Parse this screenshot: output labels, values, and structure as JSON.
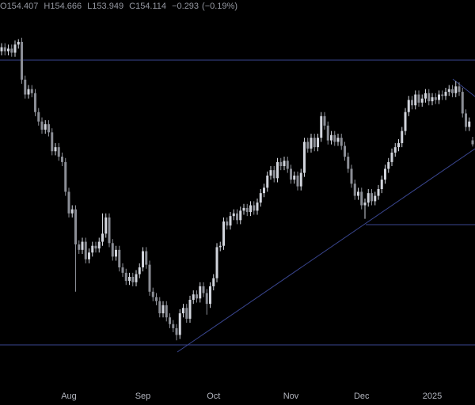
{
  "chart_data": {
    "type": "candlestick",
    "header": {
      "ohlc_prefixes": [
        "O",
        "H",
        "L",
        "C"
      ],
      "change": {
        "value": -0.293,
        "label": "−0.293"
      },
      "change_pct": {
        "value": -0.19,
        "label": "(−0.19%)"
      }
    },
    "categories": [
      null,
      null,
      null,
      null,
      null,
      null,
      null,
      null,
      null,
      null,
      null,
      null,
      null,
      null,
      null,
      null,
      null,
      null,
      null,
      null,
      "Aug",
      null,
      null,
      null,
      null,
      null,
      null,
      null,
      null,
      null,
      null,
      null,
      null,
      null,
      null,
      null,
      null,
      null,
      null,
      null,
      null,
      null,
      "Sep",
      null,
      null,
      null,
      null,
      null,
      null,
      null,
      null,
      null,
      null,
      null,
      null,
      null,
      null,
      null,
      null,
      null,
      null,
      null,
      null,
      "Oct",
      null,
      null,
      null,
      null,
      null,
      null,
      null,
      null,
      null,
      null,
      null,
      null,
      null,
      null,
      null,
      null,
      null,
      null,
      null,
      null,
      null,
      null,
      "Nov",
      null,
      null,
      null,
      null,
      null,
      null,
      null,
      null,
      null,
      null,
      null,
      null,
      null,
      null,
      null,
      null,
      null,
      null,
      null,
      null,
      "Dec",
      null,
      null,
      null,
      null,
      null,
      null,
      null,
      null,
      null,
      null,
      null,
      null,
      null,
      null,
      null,
      null,
      null,
      null,
      null,
      null,
      "2025",
      null,
      null,
      null,
      null,
      null,
      null,
      null,
      null,
      null,
      null,
      null,
      null
    ],
    "open": [
      161.0,
      161.3,
      161.0,
      161.2,
      160.9,
      161.5,
      161.7,
      158.9,
      157.8,
      158.2,
      157.9,
      156.5,
      155.8,
      155.2,
      155.6,
      155.0,
      153.6,
      153.9,
      153.2,
      152.8,
      150.6,
      149.0,
      149.3,
      146.7,
      146.3,
      146.9,
      145.6,
      146.1,
      146.6,
      146.4,
      146.9,
      147.5,
      148.7,
      146.8,
      145.8,
      146.3,
      145.0,
      144.6,
      144.0,
      144.3,
      143.9,
      144.5,
      145.0,
      146.2,
      145.2,
      143.2,
      142.8,
      142.5,
      141.6,
      142.2,
      141.3,
      140.8,
      140.5,
      140.0,
      141.6,
      142.0,
      141.2,
      142.6,
      143.0,
      142.7,
      143.6,
      143.1,
      142.3,
      143.6,
      144.2,
      146.5,
      146.6,
      148.4,
      148.1,
      148.8,
      149.0,
      148.5,
      149.2,
      149.4,
      149.1,
      149.6,
      149.2,
      149.8,
      150.5,
      150.9,
      151.8,
      152.2,
      151.6,
      152.8,
      152.5,
      152.9,
      152.3,
      151.5,
      151.8,
      151.0,
      152.0,
      154.3,
      153.8,
      154.6,
      153.9,
      154.6,
      156.2,
      155.5,
      154.4,
      154.8,
      154.3,
      154.6,
      154.0,
      153.2,
      152.3,
      151.2,
      150.3,
      150.6,
      149.6,
      149.8,
      150.5,
      149.9,
      150.3,
      150.8,
      151.5,
      152.3,
      152.8,
      153.5,
      153.9,
      154.2,
      155.1,
      156.5,
      157.4,
      157.0,
      157.8,
      157.2,
      157.5,
      157.9,
      157.3,
      157.6,
      157.4,
      157.8,
      157.7,
      158.0,
      158.2,
      157.9,
      158.4,
      158.0,
      156.4,
      155.4,
      154.407
    ],
    "high": [
      161.6,
      161.6,
      161.5,
      161.5,
      161.8,
      161.9,
      162.0,
      159.2,
      158.5,
      158.5,
      158.2,
      156.8,
      156.1,
      155.9,
      155.9,
      155.3,
      154.2,
      154.2,
      153.5,
      153.1,
      150.9,
      149.6,
      149.6,
      147.0,
      147.2,
      147.2,
      146.4,
      146.9,
      146.9,
      147.2,
      149.0,
      149.0,
      149.0,
      147.1,
      146.6,
      146.6,
      145.3,
      144.9,
      144.6,
      144.6,
      144.8,
      145.3,
      146.5,
      146.5,
      145.5,
      143.5,
      143.1,
      142.8,
      142.5,
      142.5,
      141.6,
      141.1,
      140.8,
      141.9,
      142.3,
      142.3,
      142.9,
      143.3,
      143.3,
      143.9,
      143.9,
      143.4,
      143.9,
      144.5,
      146.8,
      146.9,
      148.7,
      148.7,
      149.1,
      149.3,
      149.3,
      149.5,
      149.7,
      149.7,
      149.9,
      149.9,
      150.1,
      150.8,
      151.2,
      152.1,
      152.5,
      152.5,
      153.1,
      153.1,
      153.2,
      153.2,
      152.6,
      152.1,
      152.1,
      152.3,
      154.6,
      154.6,
      154.9,
      154.9,
      154.9,
      156.5,
      156.5,
      155.8,
      155.1,
      155.1,
      154.9,
      154.9,
      154.3,
      153.5,
      152.6,
      151.5,
      150.9,
      150.9,
      150.1,
      150.8,
      150.8,
      150.6,
      151.1,
      151.8,
      152.6,
      153.1,
      153.8,
      154.2,
      154.5,
      155.4,
      156.8,
      157.7,
      157.7,
      158.1,
      158.1,
      157.8,
      158.2,
      158.2,
      157.9,
      157.9,
      158.1,
      158.1,
      158.3,
      158.5,
      158.5,
      158.8,
      158.7,
      158.3,
      156.7,
      156.1,
      154.666
    ],
    "low": [
      160.7,
      160.7,
      160.7,
      160.6,
      160.6,
      161.2,
      158.6,
      157.5,
      157.5,
      157.6,
      156.2,
      155.5,
      154.9,
      154.9,
      154.7,
      153.3,
      153.3,
      152.9,
      152.5,
      150.3,
      148.7,
      148.7,
      143.2,
      146.0,
      146.0,
      145.3,
      145.3,
      145.8,
      146.1,
      146.1,
      146.6,
      147.2,
      146.5,
      145.5,
      145.5,
      144.7,
      144.3,
      143.7,
      143.7,
      143.6,
      143.6,
      144.2,
      144.7,
      144.9,
      142.9,
      142.5,
      142.2,
      141.3,
      141.3,
      141.0,
      140.5,
      140.2,
      139.6,
      139.7,
      141.3,
      140.9,
      140.9,
      142.3,
      142.4,
      142.4,
      142.8,
      141.5,
      142.0,
      143.3,
      143.9,
      146.2,
      146.3,
      147.8,
      147.8,
      148.5,
      148.2,
      148.2,
      148.9,
      148.8,
      148.8,
      148.9,
      148.9,
      149.5,
      150.2,
      150.6,
      151.5,
      151.3,
      151.3,
      152.2,
      152.2,
      152.0,
      151.2,
      151.2,
      150.7,
      150.7,
      151.7,
      153.5,
      153.5,
      153.6,
      153.6,
      154.3,
      155.2,
      154.1,
      154.1,
      154.0,
      154.0,
      153.7,
      152.9,
      152.0,
      150.9,
      150.0,
      150.0,
      149.3,
      148.6,
      149.5,
      149.6,
      149.6,
      150.0,
      150.5,
      151.2,
      152.0,
      152.5,
      153.2,
      153.6,
      153.9,
      154.8,
      156.2,
      156.7,
      156.7,
      156.9,
      156.9,
      157.2,
      157.0,
      157.0,
      157.1,
      157.1,
      157.4,
      157.4,
      157.7,
      157.6,
      157.6,
      157.7,
      156.1,
      155.1,
      155.1,
      153.949
    ],
    "close": [
      161.3,
      161.0,
      161.2,
      160.9,
      161.5,
      161.7,
      158.9,
      157.8,
      158.2,
      157.9,
      156.5,
      155.8,
      155.2,
      155.6,
      155.0,
      153.6,
      153.9,
      153.2,
      152.8,
      150.6,
      149.0,
      149.3,
      146.7,
      146.3,
      146.9,
      145.6,
      146.1,
      146.6,
      146.4,
      146.9,
      147.5,
      148.7,
      146.8,
      145.8,
      146.3,
      145.0,
      144.6,
      144.0,
      144.3,
      143.9,
      144.5,
      145.0,
      146.2,
      145.2,
      143.2,
      142.8,
      142.5,
      141.6,
      142.2,
      141.3,
      140.8,
      140.5,
      140.0,
      141.6,
      142.0,
      141.2,
      142.6,
      143.0,
      142.7,
      143.6,
      143.1,
      142.3,
      143.6,
      144.2,
      146.5,
      146.6,
      148.4,
      148.1,
      148.8,
      149.0,
      148.5,
      149.2,
      149.4,
      149.1,
      149.6,
      149.2,
      149.8,
      150.5,
      150.9,
      151.8,
      152.2,
      151.6,
      152.8,
      152.5,
      152.9,
      152.3,
      151.5,
      151.8,
      151.0,
      152.0,
      154.3,
      153.8,
      154.6,
      153.9,
      154.6,
      156.2,
      155.5,
      154.4,
      154.8,
      154.3,
      154.6,
      154.0,
      153.2,
      152.3,
      151.2,
      150.3,
      150.6,
      149.6,
      149.8,
      150.5,
      149.9,
      150.3,
      150.8,
      151.5,
      152.3,
      152.8,
      153.5,
      153.9,
      154.2,
      155.1,
      156.5,
      157.4,
      157.0,
      157.8,
      157.2,
      157.5,
      157.9,
      157.3,
      157.6,
      157.4,
      157.8,
      157.7,
      158.0,
      158.2,
      157.9,
      158.4,
      158.0,
      156.4,
      155.4,
      155.8,
      154.114
    ],
    "up_color": "#d1d4dc",
    "down_color": "#8b8e96",
    "ylim": [
      136.1,
      164.8
    ]
  }
}
